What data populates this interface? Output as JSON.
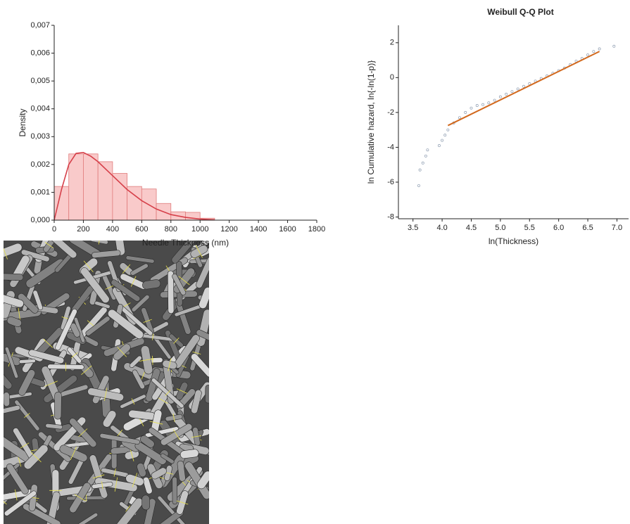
{
  "chart_data": [
    {
      "type": "histogram",
      "x_label": "Needle Thickness (nm)",
      "y_label": "Density",
      "bins": [
        0,
        100,
        200,
        300,
        400,
        500,
        600,
        700,
        800,
        900,
        1000,
        1100
      ],
      "values": [
        0.00121,
        0.00238,
        0.00238,
        0.0021,
        0.00168,
        0.00121,
        0.00112,
        0.0006,
        0.0003,
        0.00028,
        7e-05
      ],
      "color": "#f9caca",
      "edge_color": "#e07c7c",
      "curve": {
        "x": [
          0,
          50,
          100,
          150,
          200,
          250,
          300,
          400,
          500,
          600,
          700,
          800,
          900,
          1000,
          1100
        ],
        "values": [
          0,
          0.0011,
          0.002,
          0.0024,
          0.00243,
          0.0023,
          0.0021,
          0.0016,
          0.0011,
          0.0007,
          0.0004,
          0.0002,
          0.0001,
          4e-05,
          1e-05
        ],
        "color": "#d6404a"
      },
      "xlim": [
        0,
        1800
      ],
      "xticks": [
        0,
        200,
        400,
        600,
        800,
        1000,
        1200,
        1400,
        1600,
        1800
      ],
      "ylim": [
        0,
        0.007
      ],
      "yticks": [
        {
          "value": 0,
          "label": "0,000"
        },
        {
          "value": 0.001,
          "label": "0,001"
        },
        {
          "value": 0.002,
          "label": "0,002"
        },
        {
          "value": 0.003,
          "label": "0,003"
        },
        {
          "value": 0.004,
          "label": "0,004"
        },
        {
          "value": 0.005,
          "label": "0,005"
        },
        {
          "value": 0.006,
          "label": "0,006"
        },
        {
          "value": 0.007,
          "label": "0,007"
        }
      ]
    },
    {
      "type": "scatter",
      "title": "Weibull Q-Q Plot",
      "x_label": "ln(Thickness)",
      "y_label": "ln Cumulative hazard, ln{-ln(1-p)}",
      "x": [
        3.6,
        3.62,
        3.67,
        3.72,
        3.75,
        3.95,
        4.0,
        4.05,
        4.1,
        4.2,
        4.3,
        4.4,
        4.5,
        4.6,
        4.7,
        4.8,
        4.9,
        5.0,
        5.1,
        5.2,
        5.3,
        5.4,
        5.5,
        5.6,
        5.7,
        5.8,
        5.9,
        6.0,
        6.1,
        6.2,
        6.3,
        6.4,
        6.5,
        6.6,
        6.7,
        6.95
      ],
      "values": [
        -6.2,
        -5.3,
        -4.9,
        -4.5,
        -4.15,
        -3.9,
        -3.6,
        -3.3,
        -3.0,
        -2.6,
        -2.3,
        -2.0,
        -1.75,
        -1.6,
        -1.55,
        -1.45,
        -1.3,
        -1.1,
        -0.95,
        -0.8,
        -0.65,
        -0.5,
        -0.35,
        -0.2,
        -0.05,
        0.1,
        0.25,
        0.4,
        0.55,
        0.75,
        0.95,
        1.1,
        1.3,
        1.5,
        1.65,
        1.8
      ],
      "color": "#8d9cb0",
      "fit_line": {
        "x": [
          4.1,
          6.7
        ],
        "values": [
          -2.75,
          1.5
        ],
        "color": "#d2691e"
      },
      "xlim": [
        3.25,
        7.2
      ],
      "xticks": [
        3.5,
        {
          "value": 4,
          "label": "4.0"
        },
        4.5,
        {
          "value": 5,
          "label": "5.0"
        },
        5.5,
        {
          "value": 6,
          "label": "6.0"
        },
        6.5,
        {
          "value": 7,
          "label": "7.0"
        }
      ],
      "ylim": [
        -8.1,
        3
      ],
      "yticks": [
        -8,
        -6,
        -4,
        -2,
        0,
        2
      ]
    }
  ]
}
